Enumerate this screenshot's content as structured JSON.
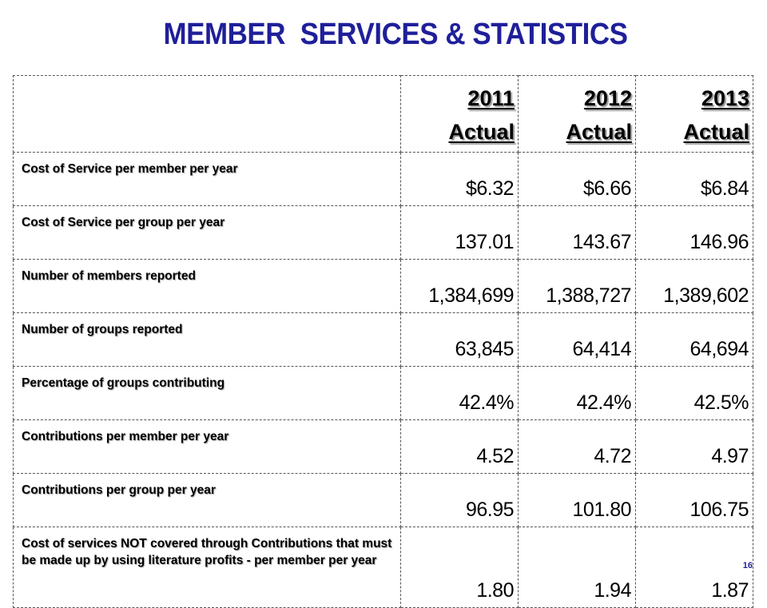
{
  "title": "MEMBER  SERVICES & STATISTICS",
  "headers": [
    {
      "year": "2011",
      "kind": "Actual"
    },
    {
      "year": "2012",
      "kind": "Actual"
    },
    {
      "year": "2013",
      "kind": "Actual"
    }
  ],
  "rows": [
    {
      "label": "Cost of Service per member per year",
      "values": [
        "$6.32",
        "$6.66",
        "$6.84"
      ]
    },
    {
      "label": "Cost of Service per group per year",
      "values": [
        "137.01",
        "143.67",
        "146.96"
      ]
    },
    {
      "label": "Number of members reported",
      "values": [
        "1,384,699",
        "1,388,727",
        "1,389,602"
      ]
    },
    {
      "label": "Number of groups reported",
      "values": [
        "63,845",
        "64,414",
        "64,694"
      ]
    },
    {
      "label": "Percentage of groups contributing",
      "values": [
        "42.4%",
        "42.4%",
        "42.5%"
      ]
    },
    {
      "label": "Contributions per member per year",
      "values": [
        "4.52",
        "4.72",
        "4.97"
      ]
    },
    {
      "label": "Contributions per group per year",
      "values": [
        "96.95",
        "101.80",
        "106.75"
      ]
    },
    {
      "label": "Cost of services NOT covered through Contributions that must be made up by using literature profits - per member per year",
      "values": [
        "1.80",
        "1.94",
        "1.87"
      ]
    }
  ],
  "page_number": "16",
  "colors": {
    "title": "#1f1f9a",
    "text": "#000000",
    "page_number": "#1f1f9a"
  }
}
